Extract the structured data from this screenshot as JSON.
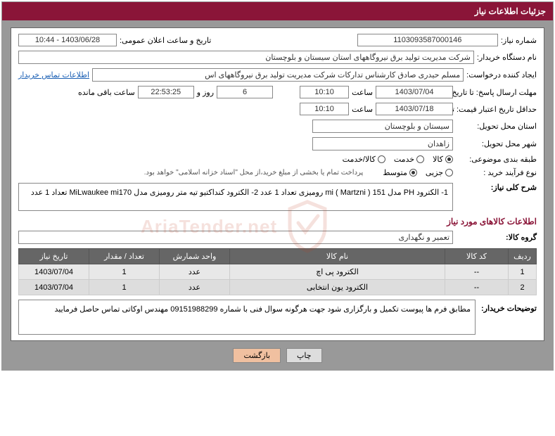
{
  "title": "جزئیات اطلاعات نیاز",
  "form": {
    "need_no_lbl": "شماره نیاز:",
    "need_no": "1103093587000146",
    "announce_lbl": "تاریخ و ساعت اعلان عمومی:",
    "announce_val": "1403/06/28 - 10:44",
    "buyer_org_lbl": "نام دستگاه خریدار:",
    "buyer_org": "شرکت مدیریت تولید برق نیروگاههای استان سیستان و بلوچستان",
    "creator_lbl": "ایجاد کننده درخواست:",
    "creator": "مسلم حیدری صادق کارشناس تدارکات شرکت مدیریت تولید برق نیروگاههای اس",
    "contact_link": "اطلاعات تماس خریدار",
    "deadline_send_lbl": "مهلت ارسال پاسخ: تا تاریخ:",
    "deadline_send_date": "1403/07/04",
    "time_lbl": "ساعت",
    "deadline_send_time": "10:10",
    "days_val": "6",
    "days_and": "روز و",
    "remain_time": "22:53:25",
    "remain_lbl": "ساعت باقی مانده",
    "min_validity_lbl": "حداقل تاریخ اعتبار قیمت: تا تاریخ:",
    "min_validity_date": "1403/07/18",
    "min_validity_time": "10:10",
    "delivery_province_lbl": "استان محل تحویل:",
    "delivery_province": "سیستان و بلوچستان",
    "delivery_city_lbl": "شهر محل تحویل:",
    "delivery_city": "زاهدان",
    "category_lbl": "طبقه بندی موضوعی:",
    "cat_goods": "کالا",
    "cat_service": "خدمت",
    "cat_goods_service": "کالا/خدمت",
    "process_type_lbl": "نوع فرآیند خرید :",
    "proc_partial": "جزیی",
    "proc_medium": "متوسط",
    "payment_note": "پرداخت تمام یا بخشی از مبلغ خرید،از محل \"اسناد خزانه اسلامی\" خواهد بود.",
    "main_desc_lbl": "شرح کلی نیاز:",
    "main_desc": "1- الکترود  PH   مدل 151 ( Martzni   )   mi   رومیزی   تعداد  1 عدد   2- الکترود کنداکتیو تیه متر رومیزی مدل  MiLwaukee mi170  تعداد  1 عدد",
    "goods_header": "اطلاعات کالاهای مورد نیاز",
    "goods_group_lbl": "گروه کالا:",
    "goods_group": "تعمیر و نگهداری"
  },
  "table": {
    "cols": [
      "ردیف",
      "کد کالا",
      "نام کالا",
      "واحد شمارش",
      "تعداد / مقدار",
      "تاریخ نیاز"
    ],
    "rows": [
      [
        "1",
        "--",
        "الکترود پی اچ",
        "عدد",
        "1",
        "1403/07/04"
      ],
      [
        "2",
        "--",
        "الکترود یون انتخابی",
        "عدد",
        "1",
        "1403/07/04"
      ]
    ]
  },
  "buyer_notes_lbl": "توضیحات خریدار:",
  "buyer_notes": "مطابق فرم ها پیوست  تکمیل و بارگزاری شود جهت هرگونه سوال فنی با شماره 09151988299 مهندس اوکاتی تماس حاصل فرمایید",
  "buttons": {
    "print": "چاپ",
    "back": "بازگشت"
  },
  "watermark": "AriaTender.net",
  "colors": {
    "header_bg": "#8a1538",
    "body_bg": "#999999",
    "th_bg": "#666666"
  }
}
